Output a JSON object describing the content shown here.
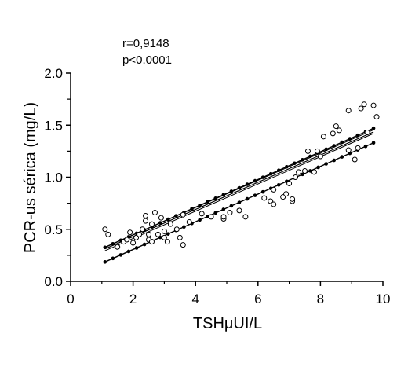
{
  "chart_data": {
    "type": "scatter",
    "title": "",
    "xlabel": "TSHμUI/L",
    "ylabel": "PCR-us sérica (mg/L)",
    "xlim": [
      0,
      10
    ],
    "ylim": [
      0.0,
      2.0
    ],
    "x_ticks": [
      "0",
      "2",
      "4",
      "6",
      "8",
      "10"
    ],
    "y_ticks": [
      "0.0",
      "0.5",
      "1.0",
      "1.5",
      "2.0"
    ],
    "grid": false,
    "annotations": [
      "r=0,9148",
      "p<0.0001"
    ],
    "points": [
      {
        "x": 1.1,
        "y": 0.5
      },
      {
        "x": 1.2,
        "y": 0.45
      },
      {
        "x": 1.5,
        "y": 0.33
      },
      {
        "x": 1.7,
        "y": 0.38
      },
      {
        "x": 1.8,
        "y": 0.4
      },
      {
        "x": 1.9,
        "y": 0.47
      },
      {
        "x": 2.0,
        "y": 0.37
      },
      {
        "x": 2.1,
        "y": 0.42
      },
      {
        "x": 2.2,
        "y": 0.45
      },
      {
        "x": 2.3,
        "y": 0.5
      },
      {
        "x": 2.4,
        "y": 0.63
      },
      {
        "x": 2.4,
        "y": 0.58
      },
      {
        "x": 2.5,
        "y": 0.4
      },
      {
        "x": 2.5,
        "y": 0.45
      },
      {
        "x": 2.6,
        "y": 0.55
      },
      {
        "x": 2.6,
        "y": 0.38
      },
      {
        "x": 2.7,
        "y": 0.66
      },
      {
        "x": 2.8,
        "y": 0.45
      },
      {
        "x": 2.9,
        "y": 0.61
      },
      {
        "x": 3.0,
        "y": 0.48
      },
      {
        "x": 3.0,
        "y": 0.42
      },
      {
        "x": 3.1,
        "y": 0.38
      },
      {
        "x": 3.2,
        "y": 0.55
      },
      {
        "x": 3.4,
        "y": 0.5
      },
      {
        "x": 3.5,
        "y": 0.42
      },
      {
        "x": 3.6,
        "y": 0.35
      },
      {
        "x": 3.6,
        "y": 0.64
      },
      {
        "x": 3.8,
        "y": 0.57
      },
      {
        "x": 4.2,
        "y": 0.65
      },
      {
        "x": 4.5,
        "y": 0.62
      },
      {
        "x": 4.9,
        "y": 0.6
      },
      {
        "x": 4.9,
        "y": 0.62
      },
      {
        "x": 5.1,
        "y": 0.66
      },
      {
        "x": 5.4,
        "y": 0.68
      },
      {
        "x": 5.6,
        "y": 0.62
      },
      {
        "x": 6.2,
        "y": 0.8
      },
      {
        "x": 6.4,
        "y": 0.77
      },
      {
        "x": 6.5,
        "y": 0.74
      },
      {
        "x": 6.5,
        "y": 0.88
      },
      {
        "x": 6.8,
        "y": 0.81
      },
      {
        "x": 6.9,
        "y": 0.84
      },
      {
        "x": 7.0,
        "y": 0.94
      },
      {
        "x": 7.1,
        "y": 0.77
      },
      {
        "x": 7.1,
        "y": 0.79
      },
      {
        "x": 7.2,
        "y": 1.0
      },
      {
        "x": 7.3,
        "y": 1.05
      },
      {
        "x": 7.5,
        "y": 1.06
      },
      {
        "x": 7.6,
        "y": 1.25
      },
      {
        "x": 7.8,
        "y": 1.05
      },
      {
        "x": 7.9,
        "y": 1.25
      },
      {
        "x": 8.0,
        "y": 1.2
      },
      {
        "x": 8.1,
        "y": 1.39
      },
      {
        "x": 8.4,
        "y": 1.42
      },
      {
        "x": 8.5,
        "y": 1.49
      },
      {
        "x": 8.6,
        "y": 1.45
      },
      {
        "x": 8.9,
        "y": 1.64
      },
      {
        "x": 8.9,
        "y": 1.26
      },
      {
        "x": 9.1,
        "y": 1.17
      },
      {
        "x": 9.2,
        "y": 1.28
      },
      {
        "x": 9.3,
        "y": 1.66
      },
      {
        "x": 9.4,
        "y": 1.7
      },
      {
        "x": 9.5,
        "y": 1.43
      },
      {
        "x": 9.7,
        "y": 1.69
      },
      {
        "x": 9.8,
        "y": 1.58
      }
    ],
    "regression": {
      "slope": 0.1306,
      "intercept": 0.168
    },
    "confidence_upper": {
      "slope": 0.1309,
      "intercept": 0.185
    },
    "confidence_lower": {
      "slope": 0.1309,
      "intercept": 0.15
    },
    "prediction_upper": {
      "slope": 0.133,
      "intercept": 0.18
    },
    "prediction_lower": {
      "slope": 0.133,
      "intercept": 0.04
    },
    "band_x_range": [
      1.1,
      9.7
    ],
    "colors": {
      "axis": "#000000",
      "points": "#000000",
      "background": "#ffffff"
    }
  }
}
